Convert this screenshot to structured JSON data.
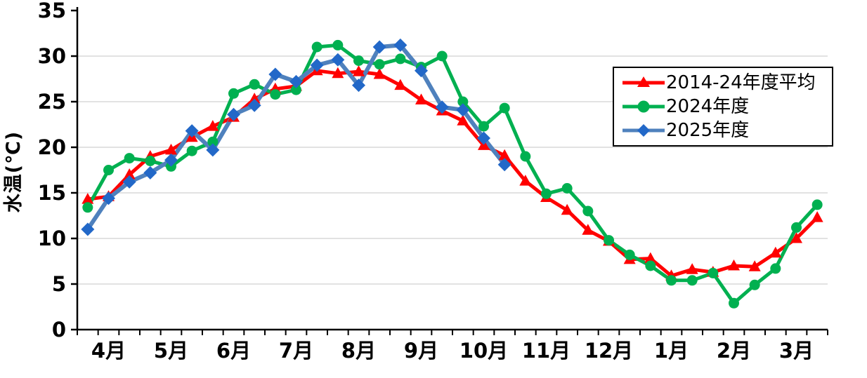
{
  "chart_data": {
    "type": "line",
    "title": "",
    "ylabel": "水温(℃)",
    "ylim": [
      0,
      35
    ],
    "ytick_step": 5,
    "grid": true,
    "gridline_values": [
      5,
      10,
      15,
      20,
      25,
      30
    ],
    "legend_position": "upper right",
    "months": [
      "4月",
      "5月",
      "6月",
      "7月",
      "8月",
      "9月",
      "10月",
      "11月",
      "12月",
      "1月",
      "2月",
      "3月"
    ],
    "points_per_month": 3,
    "series": [
      {
        "name": "2014-24年度平均",
        "marker": "triangle",
        "line_color": "#FF0000",
        "marker_color": "#FF0000",
        "values": [
          14.3,
          14.6,
          17.0,
          19.0,
          19.7,
          21.1,
          22.3,
          23.3,
          25.3,
          26.4,
          26.7,
          28.4,
          28.1,
          28.3,
          28.0,
          26.8,
          25.2,
          24.0,
          22.9,
          20.2,
          19.1,
          16.3,
          14.5,
          13.1,
          10.9,
          9.7,
          7.7,
          7.8,
          5.9,
          6.6,
          6.3,
          7.0,
          6.9,
          8.4,
          10.0,
          12.3
        ]
      },
      {
        "name": "2024年度",
        "marker": "circle",
        "line_color": "#00B050",
        "marker_color": "#00B050",
        "values": [
          13.4,
          17.5,
          18.8,
          18.5,
          17.9,
          19.6,
          20.6,
          25.9,
          26.9,
          25.8,
          26.3,
          31.0,
          31.2,
          29.5,
          29.1,
          29.7,
          28.8,
          30.0,
          25.0,
          22.3,
          24.3,
          19.0,
          14.9,
          15.5,
          13.0,
          9.8,
          8.2,
          7.0,
          5.4,
          5.4,
          6.2,
          2.9,
          4.9,
          6.7,
          11.2,
          13.7
        ]
      },
      {
        "name": "2025年度",
        "marker": "diamond",
        "line_color": "#4F81BD",
        "marker_color": "#2268C8",
        "values": [
          11.0,
          14.4,
          16.2,
          17.2,
          18.6,
          21.8,
          19.7,
          23.6,
          24.6,
          28.0,
          27.2,
          29.0,
          29.6,
          26.8,
          31.0,
          31.2,
          28.4,
          24.4,
          24.1,
          21.0,
          18.1
        ]
      }
    ],
    "axis_color": "#000000",
    "grid_color": "#D9D9D9"
  }
}
